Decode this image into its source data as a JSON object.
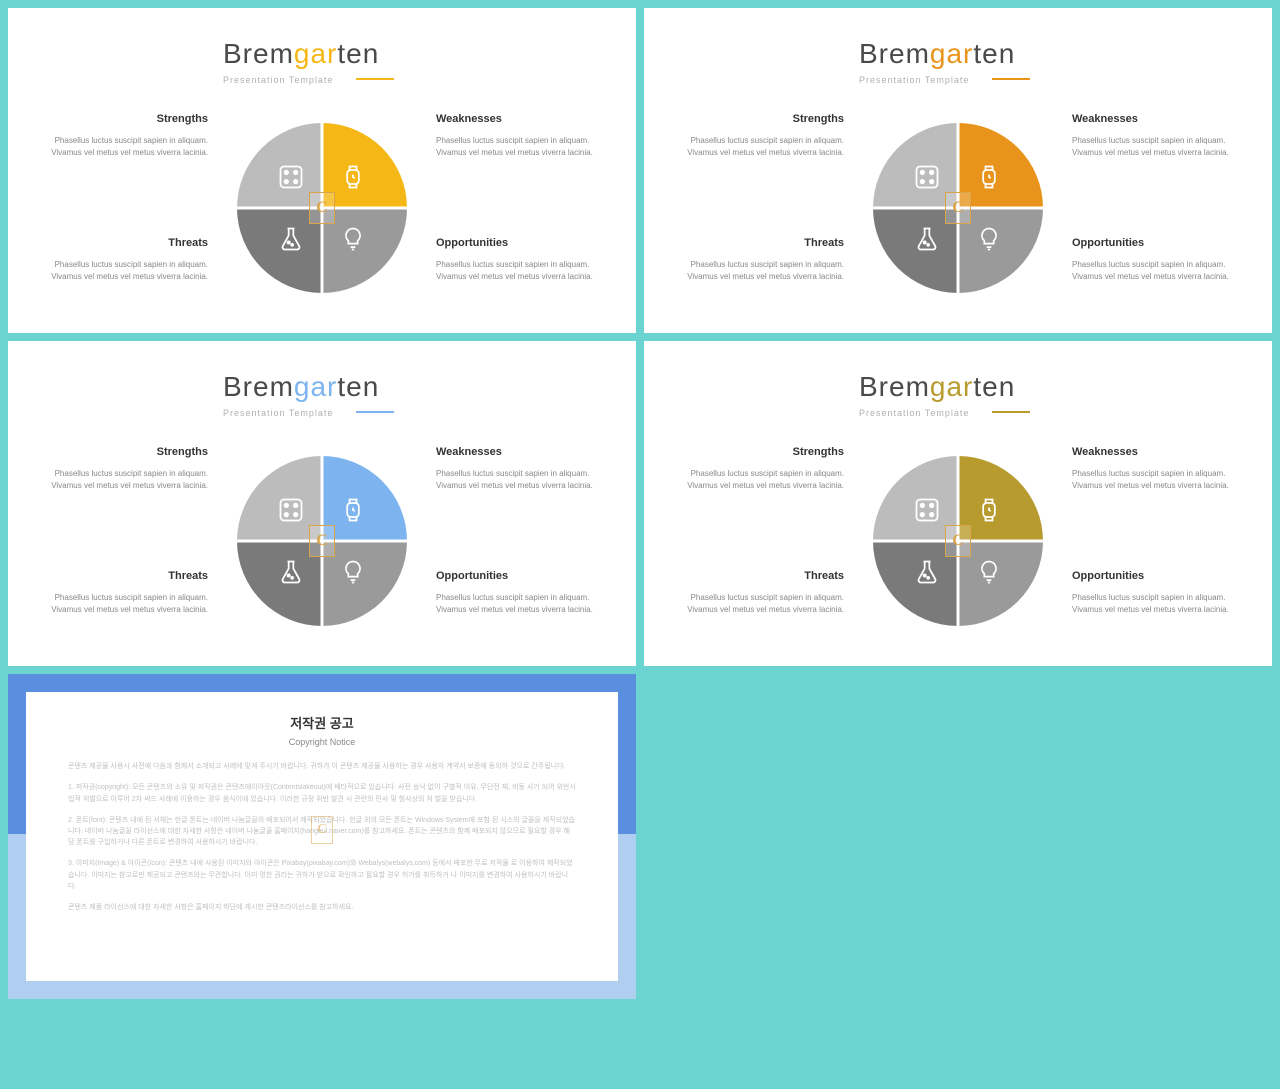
{
  "brand": {
    "pre": "Brem",
    "mid": "gar",
    "post": "ten",
    "subtitle": "Presentation Template",
    "badge": "C"
  },
  "swot": {
    "strengths": {
      "title": "Strengths",
      "body": "Phasellus luctus suscipit sapien in aliquam. Vivamus vel metus vel metus viverra lacinia."
    },
    "weaknesses": {
      "title": "Weaknesses",
      "body": "Phasellus luctus suscipit sapien in aliquam. Vivamus vel metus vel metus viverra lacinia."
    },
    "threats": {
      "title": "Threats",
      "body": "Phasellus luctus suscipit sapien in aliquam. Vivamus vel metus vel metus viverra lacinia."
    },
    "opportunities": {
      "title": "Opportunities",
      "body": "Phasellus luctus suscipit sapien in aliquam. Vivamus vel metus vel metus viverra lacinia."
    }
  },
  "variants": [
    {
      "accent": "#f5b715",
      "mid_color": "#f5b715"
    },
    {
      "accent": "#e8941c",
      "mid_color": "#e8941c"
    },
    {
      "accent": "#7db4f0",
      "mid_color": "#7db4f0"
    },
    {
      "accent": "#b89b2e",
      "mid_color": "#b89b2e"
    }
  ],
  "colors": {
    "q_tl": "#bcbcbc",
    "q_bl": "#7a7a7a",
    "q_br": "#9a9a9a",
    "background": "#6cd4d0",
    "text_dark": "#4a4a4a",
    "text_muted": "#b0b0b0"
  },
  "copyright": {
    "title": "저작권 공고",
    "subtitle": "Copyright Notice",
    "p1": "콘텐츠 제공물 사용시 사전에 다음과 함께서 소개되고 사례에 맞게 주시기 바랍니다. 귀하가 이 콘텐츠 제공물 사용하는 경우 사용자 계약서 보증에 동의하 것으로 간주됩니다.",
    "p2": "1. 저작권(copyright): 모든 콘텐츠의 소유 및 저작권은 콘텐츠에이아웃(Contentslakeout)에 배타적으로 있습니다. 사전 승낙 없이 구별적 이유, 무단전 재, 비동 사기 되어 위반시 법적 처벌으로 이루어 2차 써드 사례에 이용하는 경우 음식이에 있습니다. 이러한 규정 위반 발견 시 관련의 민사 및 형사상의 처 벌을 받습니다.",
    "p3": "2. 폰트(font): 콘텐츠 내에 된 서체는 한글 폰트는 네이버 나눔글꼴의 배포되어서 제작되었습니다. 한글 외의 모든 폰트는 Windows System에 포함 된 시스의 글꼴을 제작되었습니다. 네이버 나눔글꼴 라이선스에 대한 자세한 사항은 네이버 나눔글꼴 홈페이지(hangeul.naver.com)를 참고하세요. 폰트는 콘텐츠의 함께 배포되지 않으므로 필요할 경우 해당 폰트를 구입하거나 다른 폰트로 변경하여 사용하시기 바랍니다.",
    "p4": "3. 이미지(Image) & 아이콘(Icon): 콘텐츠 내에 사용된 이미지와 아이콘은 Pixabay(pixabay.com)와 Webalys(webalys.com) 등에서 배포한 무료 저작물 로 이용하여 제작되었습니다. 이미지는 참고로만 제공되고 콘텐츠와는 무관합니다. 이미 명한 권리는 귀하가 받으로 확인하고 필요할 경우 허가를 취득하거 나 이미지를 변경하여 사용하시기 바랍니다.",
    "p5": "콘텐츠 제품 라이선스에 대한 자세한 사항은 홈페이지 하단에 게시한 콘텐츠라이선스를 참고하세요."
  }
}
